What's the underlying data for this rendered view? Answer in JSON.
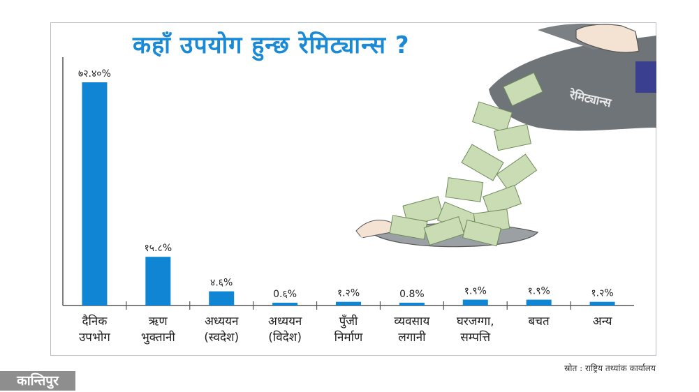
{
  "chart_data": {
    "type": "bar",
    "title": "कहाँ उपयोग हुन्छ रेमिट्यान्स ?",
    "categories": [
      [
        "दैनिक",
        "उपभोग"
      ],
      [
        "ऋण",
        "भुक्तानी"
      ],
      [
        "अध्ययन",
        "(स्वदेश)"
      ],
      [
        "अध्ययन",
        "(विदेश)"
      ],
      [
        "पुँजी",
        "निर्माण"
      ],
      [
        "व्यवसाय",
        "लगानी"
      ],
      [
        "घरजग्गा,",
        "सम्पत्ति"
      ],
      [
        "बचत"
      ],
      [
        "अन्य"
      ]
    ],
    "values": [
      72.4,
      15.8,
      4.6,
      0.6,
      1.2,
      0.8,
      1.9,
      1.9,
      1.2
    ],
    "data_labels": [
      "७२.४०%",
      "१५.८%",
      "४.६%",
      "0.६%",
      "१.२%",
      "0.8%",
      "१.९%",
      "१.९%",
      "१.२%"
    ],
    "ylim": [
      0,
      75
    ],
    "xlabel": "",
    "ylabel": "",
    "grid": false,
    "bar_color": "#0f85d3"
  },
  "illustration": {
    "bag_label": "रेमिट्यान्स",
    "watermark": "कान्तिपुर"
  },
  "source_text": "स्रोत : राष्ट्रिय तथ्यांक कार्यालय",
  "logo_text": "कान्तिपुर",
  "colors": {
    "title": "#1a8ad6",
    "bar": "#0f85d3",
    "bag": "#6f7478",
    "money": "#c9dcb4",
    "logo_bg": "#8e8e8e"
  }
}
